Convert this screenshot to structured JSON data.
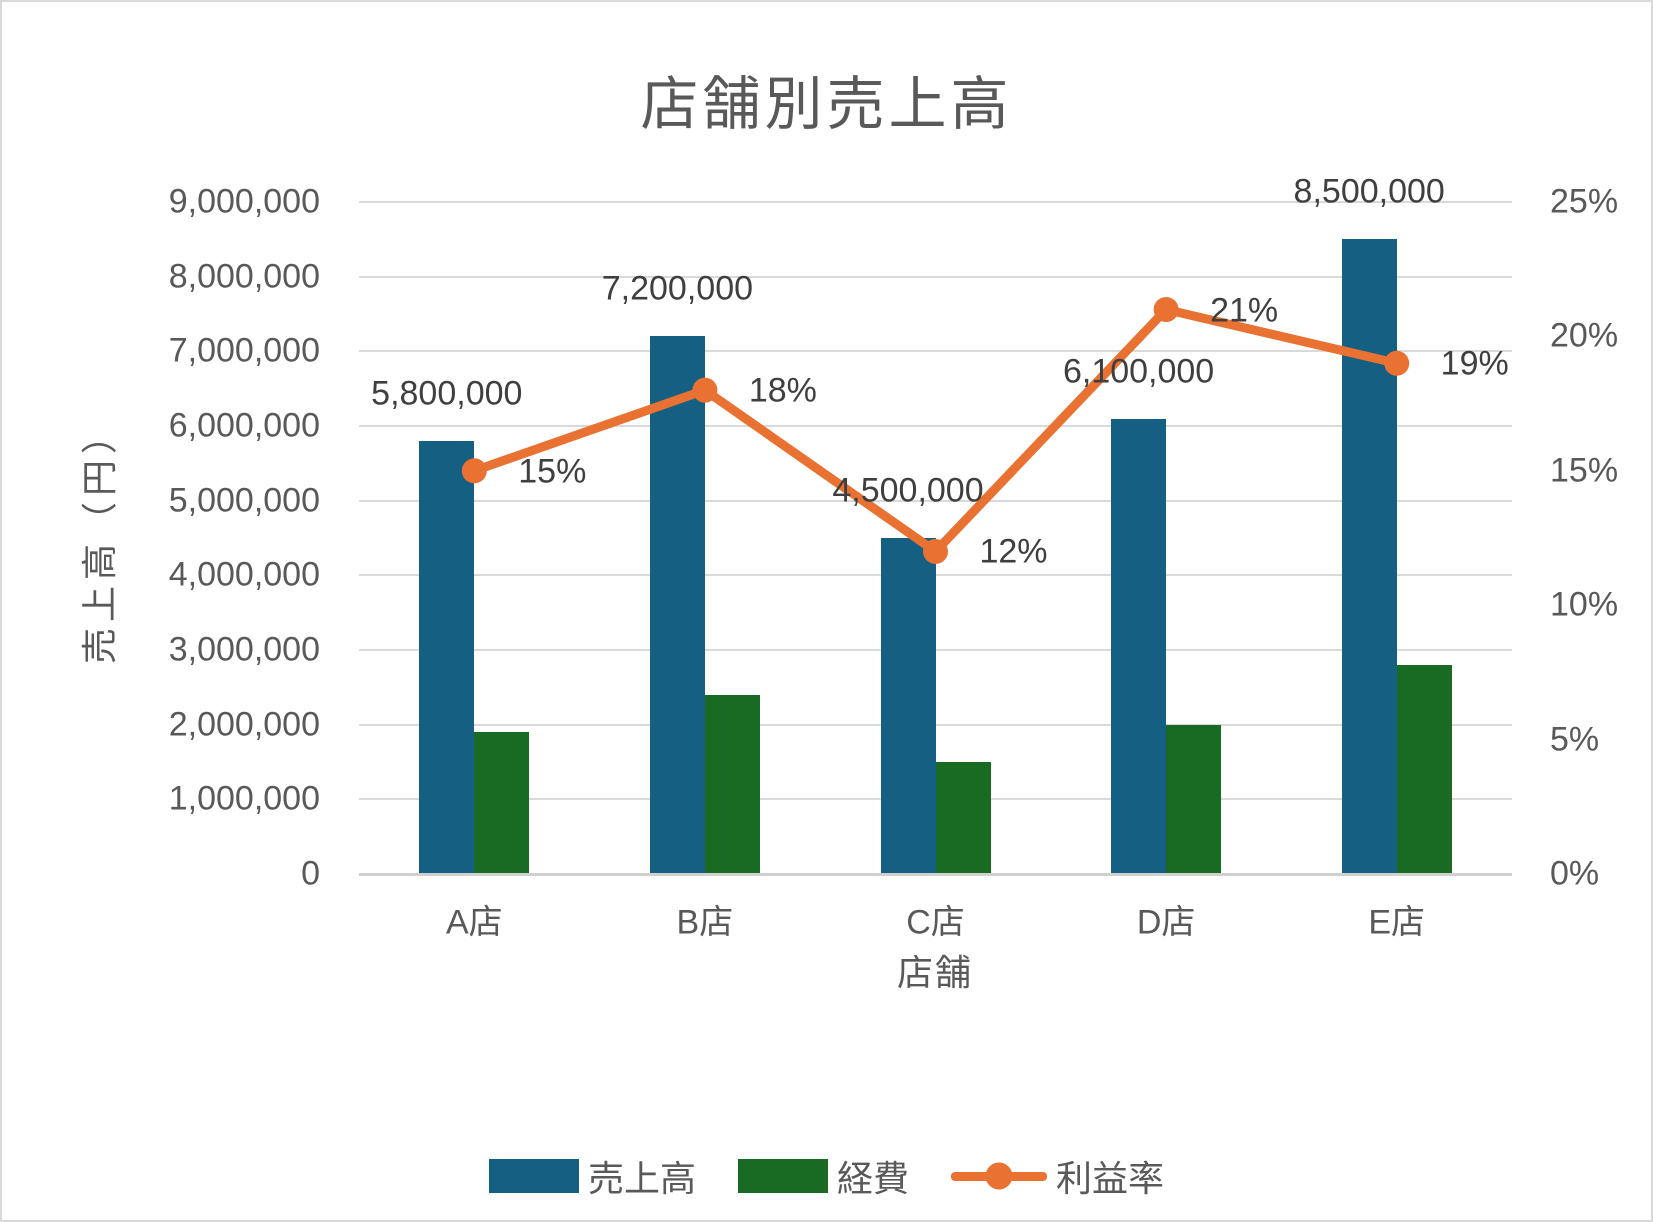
{
  "chart_data": {
    "type": "combo",
    "title": "店舗別売上高",
    "xlabel": "店舗",
    "ylabel_left": "売上高（円）",
    "categories": [
      "A店",
      "B店",
      "C店",
      "D店",
      "E店"
    ],
    "series": [
      {
        "name": "売上高",
        "type": "bar",
        "axis": "left",
        "color": "#156082",
        "values": [
          5800000,
          7200000,
          4500000,
          6100000,
          8500000
        ],
        "data_labels": [
          "5,800,000",
          "7,200,000",
          "4,500,000",
          "6,100,000",
          "8,500,000"
        ]
      },
      {
        "name": "経費",
        "type": "bar",
        "axis": "left",
        "color": "#196B24",
        "values": [
          1900000,
          2400000,
          1500000,
          2000000,
          2800000
        ],
        "data_labels": []
      },
      {
        "name": "利益率",
        "type": "line",
        "axis": "right",
        "color": "#E97132",
        "values": [
          0.15,
          0.18,
          0.12,
          0.21,
          0.19
        ],
        "data_labels": [
          "15%",
          "18%",
          "12%",
          "21%",
          "19%"
        ]
      }
    ],
    "left_axis": {
      "min": 0,
      "max": 9000000,
      "step": 1000000,
      "tick_labels": [
        "0",
        "1,000,000",
        "2,000,000",
        "3,000,000",
        "4,000,000",
        "5,000,000",
        "6,000,000",
        "7,000,000",
        "8,000,000",
        "9,000,000"
      ]
    },
    "right_axis": {
      "min": 0,
      "max": 0.25,
      "step": 0.05,
      "tick_labels": [
        "0%",
        "5%",
        "10%",
        "15%",
        "20%",
        "25%"
      ]
    },
    "legend": {
      "position": "bottom",
      "entries": [
        "売上高",
        "経費",
        "利益率"
      ]
    },
    "style_colors": {
      "bar_sales": "#156082",
      "bar_expense": "#196B24",
      "line_profit": "#E97132",
      "gridline": "#d9d9d9",
      "axis_line": "#d0d0d0",
      "tick_text": "#595959",
      "label_text": "#3f3f3f"
    },
    "grid": "horizontal"
  }
}
